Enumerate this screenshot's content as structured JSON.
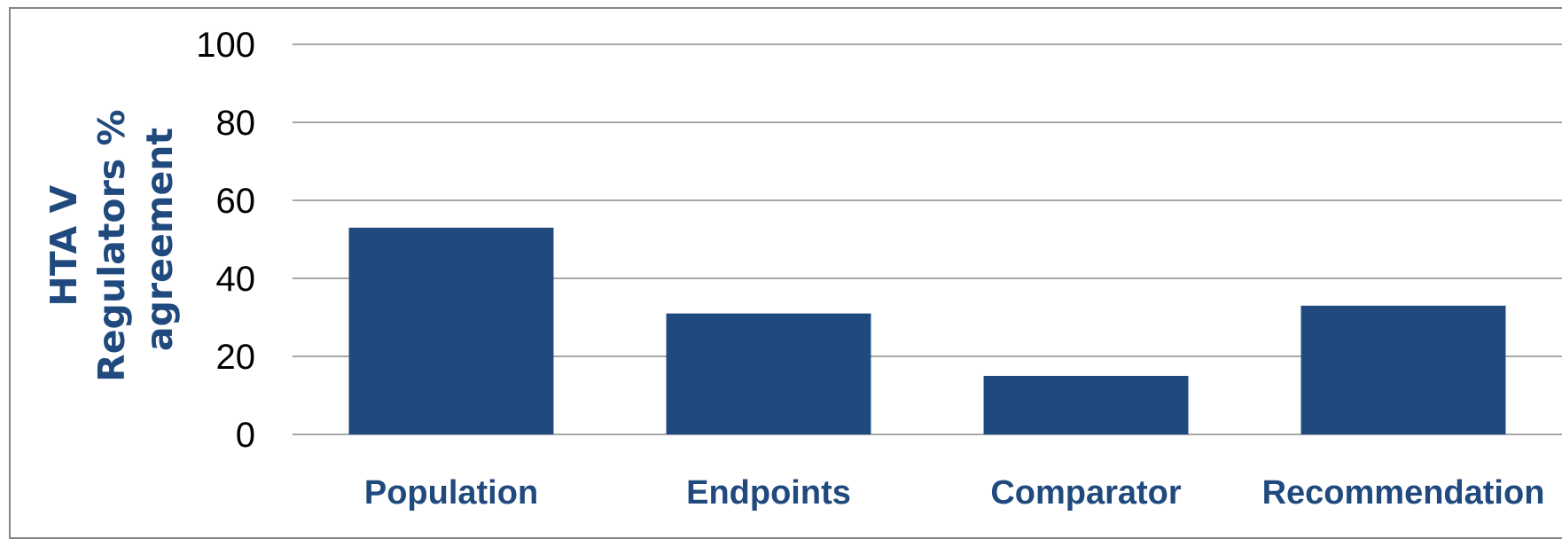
{
  "colors": {
    "bar": "#204a7e",
    "axis_text": "#204a7e"
  },
  "chart_data": {
    "type": "bar",
    "title": "",
    "xlabel": "",
    "ylabel": [
      "HTA V",
      "Regulators %",
      "agreement"
    ],
    "categories": [
      "Population",
      "Endpoints",
      "Comparator",
      "Recommendation"
    ],
    "values": [
      53,
      31,
      15,
      33
    ],
    "ylim": [
      0,
      100
    ],
    "yticks": [
      "0",
      "20",
      "40",
      "60",
      "80",
      "100"
    ],
    "grid": true,
    "legend": "none"
  }
}
